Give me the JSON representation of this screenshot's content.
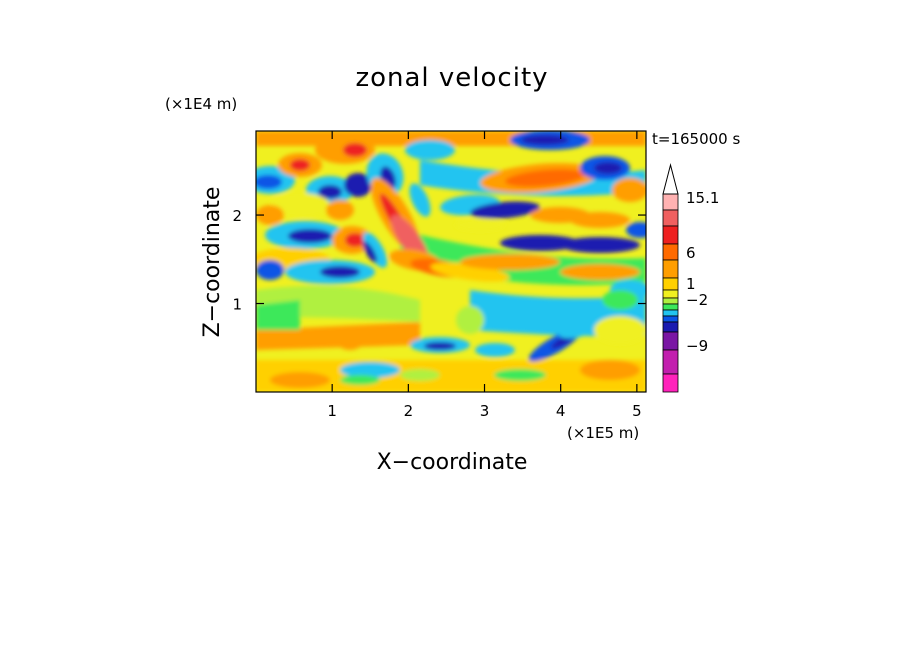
{
  "chart_data": {
    "type": "heatmap",
    "title": "zonal velocity",
    "time_label": "t=165000 s",
    "xlabel": "X−coordinate",
    "ylabel": "Z−coordinate",
    "x_scale_note": "(×1E5 m)",
    "y_scale_note": "(×1E4 m)",
    "xlim": [
      0,
      5.12
    ],
    "ylim": [
      0,
      2.95
    ],
    "x_ticks": [
      {
        "value": 1,
        "label": "1"
      },
      {
        "value": 2,
        "label": "2"
      },
      {
        "value": 3,
        "label": "3"
      },
      {
        "value": 4,
        "label": "4"
      },
      {
        "value": 5,
        "label": "5"
      }
    ],
    "y_ticks": [
      {
        "value": 1,
        "label": "1"
      },
      {
        "value": 2,
        "label": "2"
      }
    ],
    "colorbar": {
      "levels": [
        {
          "color": "#ff22bb"
        },
        {
          "color": "#c21fae"
        },
        {
          "color": "#7a16a4"
        },
        {
          "color": "#1a1ab0"
        },
        {
          "color": "#0a55e6"
        },
        {
          "color": "#22c4f0"
        },
        {
          "color": "#3ce85a"
        },
        {
          "color": "#b0f040"
        },
        {
          "color": "#f0f020"
        },
        {
          "color": "#ffd000"
        },
        {
          "color": "#ff9e00"
        },
        {
          "color": "#ff6a00"
        },
        {
          "color": "#ee2020"
        },
        {
          "color": "#f06060"
        },
        {
          "color": "#ffb2b2"
        }
      ],
      "labels": [
        {
          "value": "15.1"
        },
        {
          "value": "6"
        },
        {
          "value": "1"
        },
        {
          "value": "−2"
        },
        {
          "value": "−9"
        }
      ]
    }
  }
}
